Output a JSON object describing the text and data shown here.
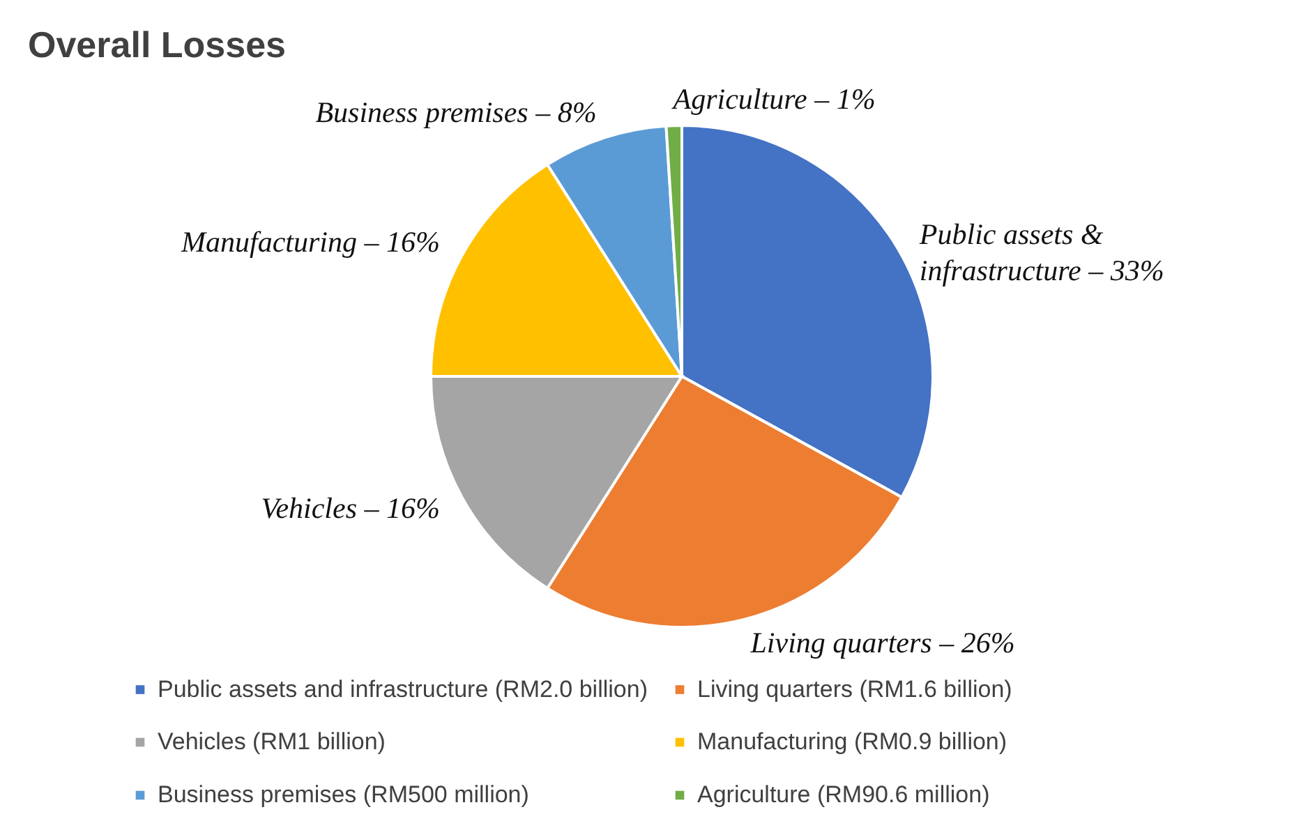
{
  "chart_data": {
    "type": "pie",
    "title": "Overall Losses",
    "categories": [
      "Public assets and infrastructure (RM2.0 billion)",
      "Living quarters (RM1.6 billion)",
      "Vehicles (RM1 billion)",
      "Manufacturing (RM0.9 billion)",
      "Business premises (RM500 million)",
      "Agriculture (RM90.6 million)"
    ],
    "values": [
      33,
      26,
      16,
      16,
      8,
      1
    ],
    "colors": [
      "#4472c4",
      "#ed7d31",
      "#a5a5a5",
      "#ffc000",
      "#5b9bd5",
      "#70ad47"
    ],
    "annotations": [
      {
        "text": "Public assets & infrastructure – 33%",
        "x": "Public assets and infrastructure (RM2.0 billion)"
      },
      {
        "text": "Living quarters – 26%",
        "x": "Living quarters (RM1.6 billion)"
      },
      {
        "text": "Vehicles – 16%",
        "x": "Vehicles (RM1 billion)"
      },
      {
        "text": "Manufacturing – 16%",
        "x": "Manufacturing (RM0.9 billion)"
      },
      {
        "text": "Business premises – 8%",
        "x": "Business premises (RM500 million)"
      },
      {
        "text": "Agriculture – 1%",
        "x": "Agriculture (RM90.6 million)"
      }
    ],
    "legend": "bottom"
  }
}
